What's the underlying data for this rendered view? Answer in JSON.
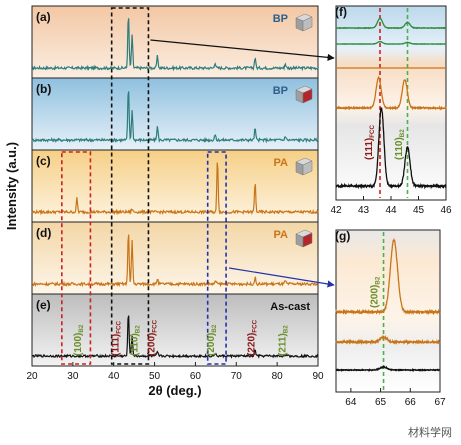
{
  "chart_data": [
    {
      "id": "main",
      "type": "line",
      "xlabel": "2θ (deg.)",
      "ylabel": "Intensity (a.u.)",
      "xlim": [
        20,
        90
      ],
      "xticks": [
        "20",
        "30",
        "40",
        "50",
        "60",
        "70",
        "80",
        "90"
      ],
      "panels": [
        {
          "label": "(a)",
          "sample": "BP",
          "bg": "#f3c7a4",
          "bg2": "#fbeee2",
          "line": "#2e7d7d",
          "peaks": [
            {
              "x": 43.6,
              "h": 1.0
            },
            {
              "x": 44.5,
              "h": 0.6
            },
            {
              "x": 50.7,
              "h": 0.22
            },
            {
              "x": 64.8,
              "h": 0.1
            },
            {
              "x": 74.6,
              "h": 0.2
            },
            {
              "x": 82.0,
              "h": 0.08
            }
          ]
        },
        {
          "label": "(b)",
          "sample": "BP",
          "bg": "#8fc0df",
          "bg2": "#e7f1f8",
          "line": "#2e7d7d",
          "peaks": [
            {
              "x": 43.6,
              "h": 1.0
            },
            {
              "x": 44.5,
              "h": 0.55
            },
            {
              "x": 50.7,
              "h": 0.25
            },
            {
              "x": 64.8,
              "h": 0.1
            },
            {
              "x": 74.6,
              "h": 0.22
            },
            {
              "x": 82.0,
              "h": 0.08
            }
          ]
        },
        {
          "label": "(c)",
          "sample": "PA",
          "bg": "#f6cf86",
          "bg2": "#fdf4e2",
          "line": "#c8751a",
          "peaks": [
            {
              "x": 31.0,
              "h": 0.26
            },
            {
              "x": 44.5,
              "h": 0.06
            },
            {
              "x": 65.4,
              "h": 1.0
            },
            {
              "x": 74.6,
              "h": 0.55
            }
          ]
        },
        {
          "label": "(d)",
          "sample": "PA",
          "bg": "#f3d6a6",
          "bg2": "#fdf6ea",
          "line": "#c8751a",
          "peaks": [
            {
              "x": 43.6,
              "h": 1.0
            },
            {
              "x": 44.5,
              "h": 0.8
            },
            {
              "x": 50.7,
              "h": 0.1
            },
            {
              "x": 65.0,
              "h": 0.06
            },
            {
              "x": 74.6,
              "h": 0.12
            },
            {
              "x": 82.0,
              "h": 0.06
            }
          ]
        },
        {
          "label": "(e)",
          "sample": "As-cast",
          "bg": "#bdbdbd",
          "bg2": "#f3f3f3",
          "line": "#111111",
          "peaks": [
            {
              "x": 43.6,
              "h": 1.0
            },
            {
              "x": 44.5,
              "h": 0.45
            },
            {
              "x": 50.7,
              "h": 0.08
            },
            {
              "x": 64.8,
              "h": 0.06
            },
            {
              "x": 74.6,
              "h": 0.15
            },
            {
              "x": 82.0,
              "h": 0.05
            }
          ]
        }
      ],
      "annotations": [
        {
          "text": "(100)",
          "sub": "B2",
          "x": 32,
          "color": "#6a8f2a"
        },
        {
          "text": "(111)",
          "sub": "FCC",
          "x": 41.2,
          "color": "#8b1a1a"
        },
        {
          "text": "(110)",
          "sub": "B2",
          "x": 45.8,
          "color": "#6a8f2a"
        },
        {
          "text": "(200)",
          "sub": "FCC",
          "x": 50,
          "color": "#8b1a1a"
        },
        {
          "text": "(200)",
          "sub": "B2",
          "x": 64.5,
          "color": "#6a8f2a"
        },
        {
          "text": "(220)",
          "sub": "FCC",
          "x": 74.5,
          "color": "#8b1a1a"
        },
        {
          "text": "(211)",
          "sub": "B2",
          "x": 82,
          "color": "#6a8f2a"
        }
      ],
      "boxes": [
        {
          "x0": 39.5,
          "x1": 48.5,
          "color": "#111111",
          "panels": [
            0,
            4
          ]
        },
        {
          "x0": 27.3,
          "x1": 34.3,
          "color": "#cc2222",
          "panels": [
            2,
            4
          ]
        },
        {
          "x0": 63.0,
          "x1": 67.5,
          "color": "#2233aa",
          "panels": [
            2,
            4
          ]
        }
      ]
    },
    {
      "id": "f",
      "label": "(f)",
      "type": "line",
      "xlim": [
        42,
        46
      ],
      "xticks": [
        "42",
        "43",
        "44",
        "45",
        "46"
      ],
      "guides": [
        {
          "x": 43.6,
          "color": "#cc2222"
        },
        {
          "x": 44.6,
          "color": "#4caf50"
        }
      ],
      "annotations": [
        {
          "text": "(111)",
          "sub": "FCC",
          "x": 43.3,
          "color": "#8b1a1a"
        },
        {
          "text": "(110)",
          "sub": "B2",
          "x": 44.4,
          "color": "#6a8f2a"
        }
      ],
      "series": [
        {
          "color": "#2e8b3a",
          "peaks": [
            {
              "x": 43.6,
              "h": 0.6
            },
            {
              "x": 44.6,
              "h": 0.35
            }
          ]
        },
        {
          "color": "#2e8b3a",
          "peaks": [
            {
              "x": 43.6,
              "h": 0.3
            },
            {
              "x": 44.6,
              "h": 0.2
            }
          ]
        },
        {
          "color": "#c8751a",
          "peaks": [
            {
              "x": 43.6,
              "h": 0.0
            }
          ]
        },
        {
          "color": "#c8751a",
          "peaks": [
            {
              "x": 43.55,
              "h": 0.8
            },
            {
              "x": 44.5,
              "h": 0.75
            }
          ]
        },
        {
          "color": "#111111",
          "peaks": [
            {
              "x": 43.65,
              "h": 1.0
            },
            {
              "x": 44.6,
              "h": 0.5
            }
          ]
        }
      ]
    },
    {
      "id": "g",
      "label": "(g)",
      "type": "line",
      "xlim": [
        63.5,
        67
      ],
      "xticks": [
        "64",
        "65",
        "66",
        "67"
      ],
      "guides": [
        {
          "x": 65.1,
          "color": "#4caf50"
        }
      ],
      "annotations": [
        {
          "text": "(200)",
          "sub": "B2",
          "x": 64.9,
          "color": "#6a8f2a"
        }
      ],
      "series": [
        {
          "color": "#c8751a",
          "peaks": [
            {
              "x": 65.45,
              "h": 1.0
            }
          ]
        },
        {
          "color": "#c8751a",
          "peaks": [
            {
              "x": 65.1,
              "h": 0.08
            }
          ]
        },
        {
          "color": "#111111",
          "peaks": [
            {
              "x": 65.1,
              "h": 0.12
            }
          ]
        }
      ]
    }
  ],
  "watermark": "材料学网"
}
